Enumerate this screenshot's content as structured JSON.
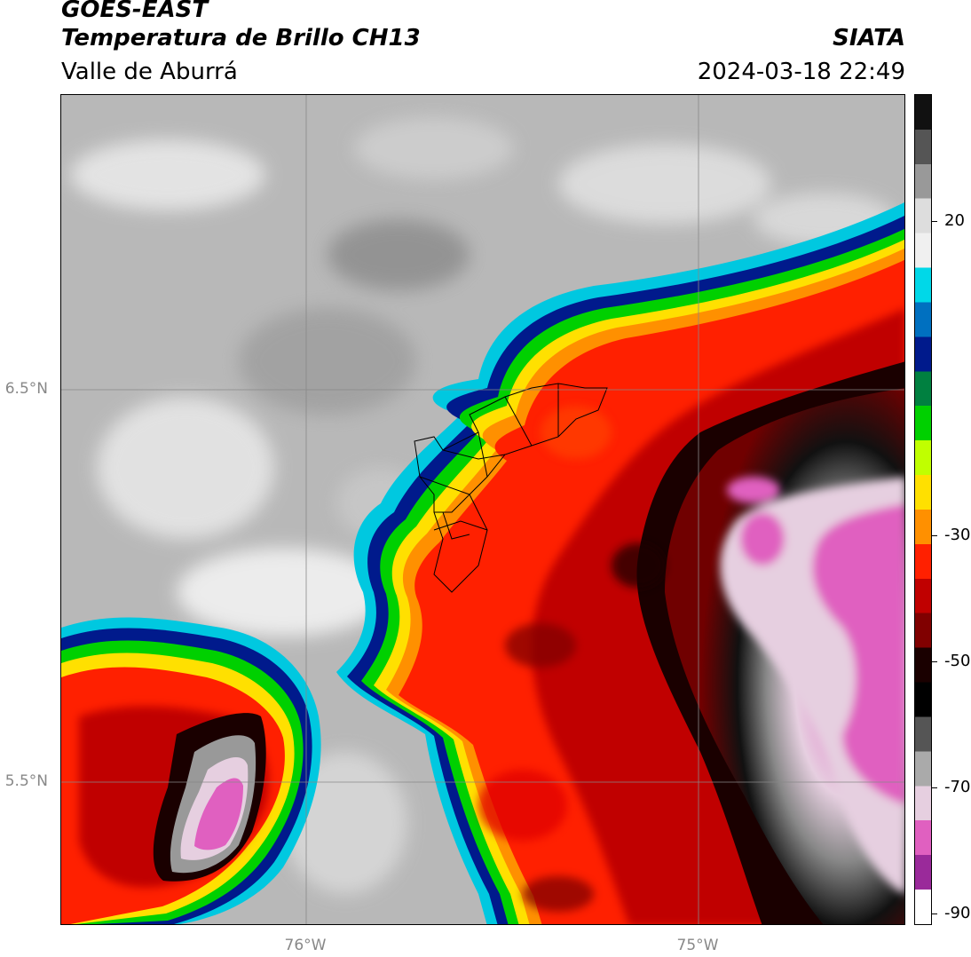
{
  "header": {
    "satellite": "GOES-EAST",
    "product": "Temperatura de Brillo CH13",
    "region": "Valle de Aburrá",
    "agency": "SIATA",
    "datetime": "2024-03-18 22:49"
  },
  "axes": {
    "lat_labels": [
      "6.5°N",
      "5.5°N"
    ],
    "lon_labels": [
      "76°W",
      "75°W"
    ]
  },
  "colorbar": {
    "ticks": [
      "20",
      "-30",
      "-50",
      "-70",
      "-90"
    ],
    "colors": [
      "#111111",
      "#555555",
      "#999999",
      "#dddddd",
      "#f0f0f0",
      "#00d8e8",
      "#0070c0",
      "#001a8c",
      "#008040",
      "#00d000",
      "#c0ff00",
      "#ffe000",
      "#ff9000",
      "#ff2000",
      "#c00000",
      "#800000",
      "#1a0000",
      "#000000",
      "#555555",
      "#aaaaaa",
      "#e6cfe0",
      "#e060c0",
      "#9a2a9a",
      "#ffffff"
    ]
  }
}
